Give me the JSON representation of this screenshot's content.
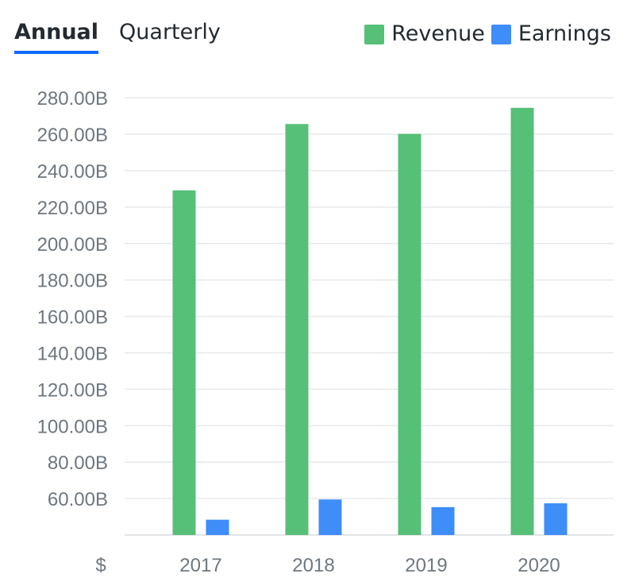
{
  "tabs": [
    {
      "label": "Annual",
      "active": true
    },
    {
      "label": "Quarterly",
      "active": false
    }
  ],
  "chart_data": {
    "type": "bar",
    "categories": [
      "2017",
      "2018",
      "2019",
      "2020"
    ],
    "series": [
      {
        "name": "Revenue",
        "color": "#56bf78",
        "values": [
          229.2,
          265.6,
          260.2,
          274.5
        ]
      },
      {
        "name": "Earnings",
        "color": "#3e8df8",
        "values": [
          48.4,
          59.5,
          55.3,
          57.4
        ]
      }
    ],
    "y_ticks": [
      60,
      80,
      100,
      120,
      140,
      160,
      180,
      200,
      220,
      240,
      260,
      280
    ],
    "y_tick_labels": [
      "60.00B",
      "80.00B",
      "100.00B",
      "120.00B",
      "140.00B",
      "160.00B",
      "180.00B",
      "200.00B",
      "220.00B",
      "240.00B",
      "260.00B",
      "280.00B"
    ],
    "ylim": [
      40,
      280
    ],
    "currency_label": "$",
    "grid": true,
    "legend_position": "top-right"
  }
}
